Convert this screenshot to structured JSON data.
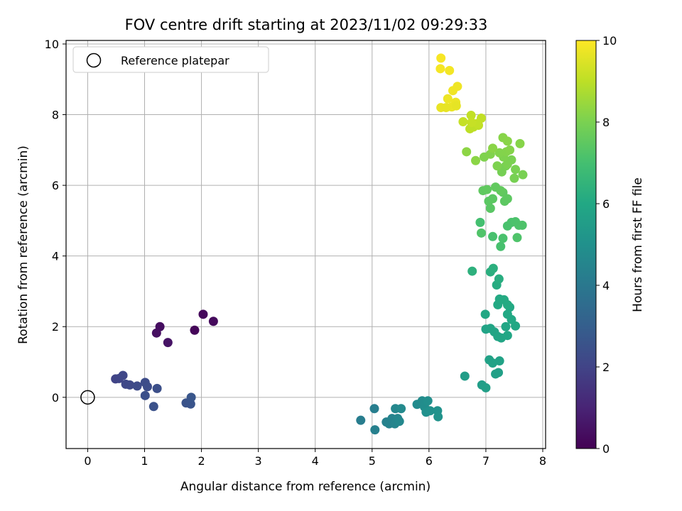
{
  "chart_data": {
    "type": "scatter",
    "title": "FOV centre drift starting at 2023/11/02 09:29:33",
    "xlabel": "Angular distance from reference (arcmin)",
    "ylabel": "Rotation from reference (arcmin)",
    "xlim": [
      -0.38,
      8.05
    ],
    "ylim": [
      -1.45,
      10.1
    ],
    "xticks": [
      "0",
      "1",
      "2",
      "3",
      "4",
      "5",
      "6",
      "7",
      "8"
    ],
    "yticks": [
      "0",
      "2",
      "4",
      "6",
      "8",
      "10"
    ],
    "grid": true,
    "legend_position": "top-left",
    "legend_label": "Reference platepar",
    "reference_point": [
      0,
      0
    ],
    "colorbar": {
      "label": "Hours from first FF file",
      "range": [
        0,
        10
      ],
      "ticks": [
        "0",
        "2",
        "4",
        "6",
        "8",
        "10"
      ],
      "colormap": "viridis"
    },
    "points": [
      [
        1.88,
        1.9,
        0.15
      ],
      [
        2.03,
        2.35,
        0.2
      ],
      [
        2.21,
        2.15,
        0.25
      ],
      [
        1.27,
        2.0,
        0.35
      ],
      [
        1.21,
        1.82,
        0.4
      ],
      [
        1.41,
        1.55,
        0.5
      ],
      [
        0.49,
        0.52,
        2.0
      ],
      [
        0.55,
        0.53,
        2.05
      ],
      [
        0.62,
        0.62,
        2.1
      ],
      [
        0.67,
        0.37,
        2.15
      ],
      [
        0.74,
        0.35,
        2.2
      ],
      [
        0.87,
        0.32,
        2.25
      ],
      [
        1.01,
        0.42,
        2.3
      ],
      [
        1.05,
        0.3,
        2.35
      ],
      [
        1.22,
        0.25,
        2.4
      ],
      [
        1.01,
        0.05,
        2.45
      ],
      [
        1.16,
        -0.26,
        2.5
      ],
      [
        1.73,
        -0.16,
        2.55
      ],
      [
        1.81,
        -0.19,
        2.6
      ],
      [
        1.82,
        0.0,
        2.65
      ],
      [
        4.8,
        -0.65,
        4.2
      ],
      [
        5.04,
        -0.32,
        4.25
      ],
      [
        5.05,
        -0.92,
        4.3
      ],
      [
        5.25,
        -0.7,
        4.35
      ],
      [
        5.3,
        -0.75,
        4.4
      ],
      [
        5.35,
        -0.6,
        4.45
      ],
      [
        5.4,
        -0.75,
        4.5
      ],
      [
        5.45,
        -0.6,
        4.55
      ],
      [
        5.41,
        -0.32,
        4.6
      ],
      [
        5.48,
        -0.68,
        4.65
      ],
      [
        5.51,
        -0.32,
        4.7
      ],
      [
        5.79,
        -0.2,
        4.75
      ],
      [
        5.88,
        -0.1,
        4.8
      ],
      [
        5.92,
        -0.27,
        4.85
      ],
      [
        5.98,
        -0.1,
        4.9
      ],
      [
        5.95,
        -0.42,
        4.95
      ],
      [
        6.02,
        -0.38,
        5.0
      ],
      [
        6.15,
        -0.38,
        5.05
      ],
      [
        6.16,
        -0.55,
        5.1
      ],
      [
        6.63,
        0.6,
        5.5
      ],
      [
        6.93,
        0.35,
        5.55
      ],
      [
        7.0,
        0.27,
        5.6
      ],
      [
        7.22,
        0.7,
        5.65
      ],
      [
        7.17,
        0.66,
        5.65
      ],
      [
        7.06,
        1.06,
        5.7
      ],
      [
        7.12,
        0.97,
        5.72
      ],
      [
        7.24,
        1.03,
        5.74
      ],
      [
        7.0,
        1.93,
        5.8
      ],
      [
        7.08,
        1.95,
        5.82
      ],
      [
        7.15,
        1.85,
        5.84
      ],
      [
        7.21,
        1.72,
        5.86
      ],
      [
        7.27,
        1.68,
        5.88
      ],
      [
        7.38,
        1.75,
        5.9
      ],
      [
        7.35,
        2.0,
        5.92
      ],
      [
        7.52,
        2.02,
        5.94
      ],
      [
        6.99,
        2.35,
        5.96
      ],
      [
        7.45,
        2.2,
        5.98
      ],
      [
        7.38,
        2.35,
        6.0
      ],
      [
        7.42,
        2.55,
        6.02
      ],
      [
        7.21,
        2.62,
        6.04
      ],
      [
        7.24,
        2.78,
        6.06
      ],
      [
        7.32,
        2.76,
        6.08
      ],
      [
        7.38,
        2.62,
        6.1
      ],
      [
        7.19,
        3.18,
        6.15
      ],
      [
        7.23,
        3.35,
        6.2
      ],
      [
        7.08,
        3.55,
        6.25
      ],
      [
        7.13,
        3.65,
        6.3
      ],
      [
        6.76,
        3.57,
        6.35
      ],
      [
        6.9,
        4.95,
        7.0
      ],
      [
        7.26,
        4.27,
        7.05
      ],
      [
        7.12,
        4.55,
        7.07
      ],
      [
        7.3,
        4.5,
        7.09
      ],
      [
        7.38,
        4.85,
        7.1
      ],
      [
        7.45,
        4.95,
        7.12
      ],
      [
        7.52,
        4.97,
        7.14
      ],
      [
        7.58,
        4.87,
        7.16
      ],
      [
        7.64,
        4.87,
        7.18
      ],
      [
        7.55,
        4.52,
        7.2
      ],
      [
        6.92,
        4.65,
        7.22
      ],
      [
        7.08,
        5.35,
        7.4
      ],
      [
        7.05,
        5.55,
        7.42
      ],
      [
        7.12,
        5.62,
        7.44
      ],
      [
        7.33,
        5.55,
        7.46
      ],
      [
        7.38,
        5.62,
        7.48
      ],
      [
        7.3,
        5.8,
        7.5
      ],
      [
        6.95,
        5.85,
        7.52
      ],
      [
        7.02,
        5.88,
        7.54
      ],
      [
        7.17,
        5.95,
        7.56
      ],
      [
        7.26,
        5.85,
        7.58
      ],
      [
        7.28,
        6.38,
        7.9
      ],
      [
        7.35,
        6.55,
        7.92
      ],
      [
        7.5,
        6.2,
        7.94
      ],
      [
        7.65,
        6.3,
        7.96
      ],
      [
        7.52,
        6.45,
        7.98
      ],
      [
        7.45,
        6.72,
        8.0
      ],
      [
        7.38,
        6.6,
        8.02
      ],
      [
        7.2,
        6.55,
        8.04
      ],
      [
        7.31,
        6.8,
        8.06
      ],
      [
        6.97,
        6.8,
        8.08
      ],
      [
        7.08,
        6.88,
        8.1
      ],
      [
        7.24,
        6.92,
        8.12
      ],
      [
        7.36,
        6.95,
        8.14
      ],
      [
        7.42,
        7.0,
        8.16
      ],
      [
        7.6,
        7.18,
        8.18
      ],
      [
        7.3,
        7.35,
        8.2
      ],
      [
        7.38,
        7.25,
        8.22
      ],
      [
        7.12,
        7.05,
        8.24
      ],
      [
        6.82,
        6.7,
        8.26
      ],
      [
        6.66,
        6.95,
        8.28
      ],
      [
        6.72,
        7.6,
        9.0
      ],
      [
        6.78,
        7.65,
        9.02
      ],
      [
        6.87,
        7.7,
        9.04
      ],
      [
        6.92,
        7.9,
        9.06
      ],
      [
        6.74,
        7.98,
        9.08
      ],
      [
        6.85,
        7.75,
        9.1
      ],
      [
        6.6,
        7.8,
        9.12
      ],
      [
        6.75,
        7.78,
        9.14
      ],
      [
        6.21,
        9.6,
        9.9
      ],
      [
        6.2,
        9.3,
        9.88
      ],
      [
        6.36,
        9.25,
        9.85
      ],
      [
        6.42,
        8.68,
        9.8
      ],
      [
        6.5,
        8.8,
        9.78
      ],
      [
        6.33,
        8.45,
        9.75
      ],
      [
        6.47,
        8.35,
        9.72
      ],
      [
        6.4,
        8.22,
        9.7
      ],
      [
        6.21,
        8.2,
        9.68
      ],
      [
        6.3,
        8.2,
        9.66
      ],
      [
        6.48,
        8.25,
        9.64
      ]
    ]
  }
}
